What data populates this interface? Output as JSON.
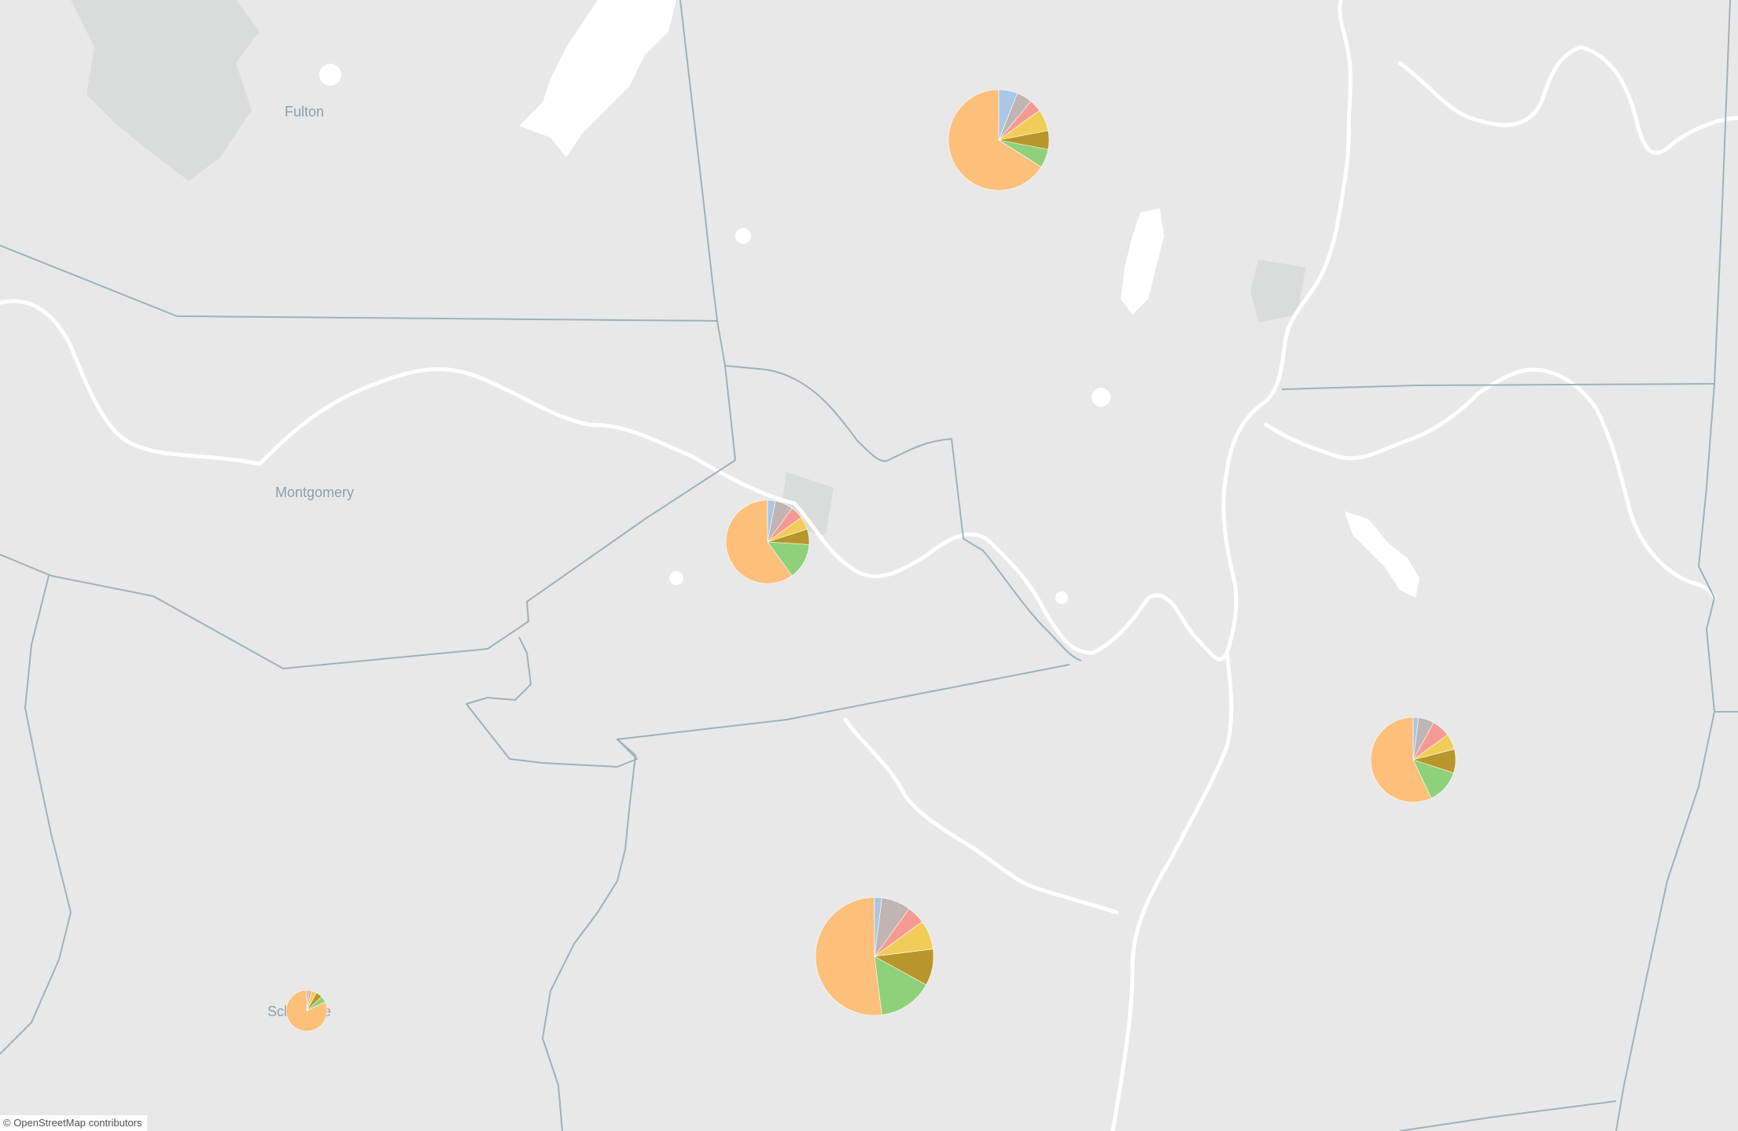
{
  "map": {
    "county_labels": {
      "fulton": "Fulton",
      "montgomery": "Montgomery",
      "schoharie": "Schoharie"
    },
    "attribution": "© OpenStreetMap contributors"
  },
  "colors": {
    "land": "#e8e8e8",
    "water": "#ffffff",
    "boundary": "#9fb1b9",
    "urban": "#d6d9d8"
  },
  "legend_colors": [
    "#fdbf79",
    "#8fd07a",
    "#b9962b",
    "#f2cc58",
    "#f59a93",
    "#c0b5b3",
    "#a8c8e6"
  ],
  "chart_data": {
    "type": "pie",
    "series": [
      {
        "values": [
          66,
          6,
          6,
          7,
          4,
          5,
          6
        ]
      },
      {
        "values": [
          60,
          14,
          6,
          5,
          5,
          7,
          3
        ]
      },
      {
        "values": [
          52,
          15,
          10,
          8,
          5,
          8,
          2
        ]
      },
      {
        "values": [
          57,
          13,
          9,
          6,
          7,
          6,
          2
        ]
      },
      {
        "values": [
          82,
          5,
          5,
          4,
          2,
          2
        ]
      }
    ]
  }
}
